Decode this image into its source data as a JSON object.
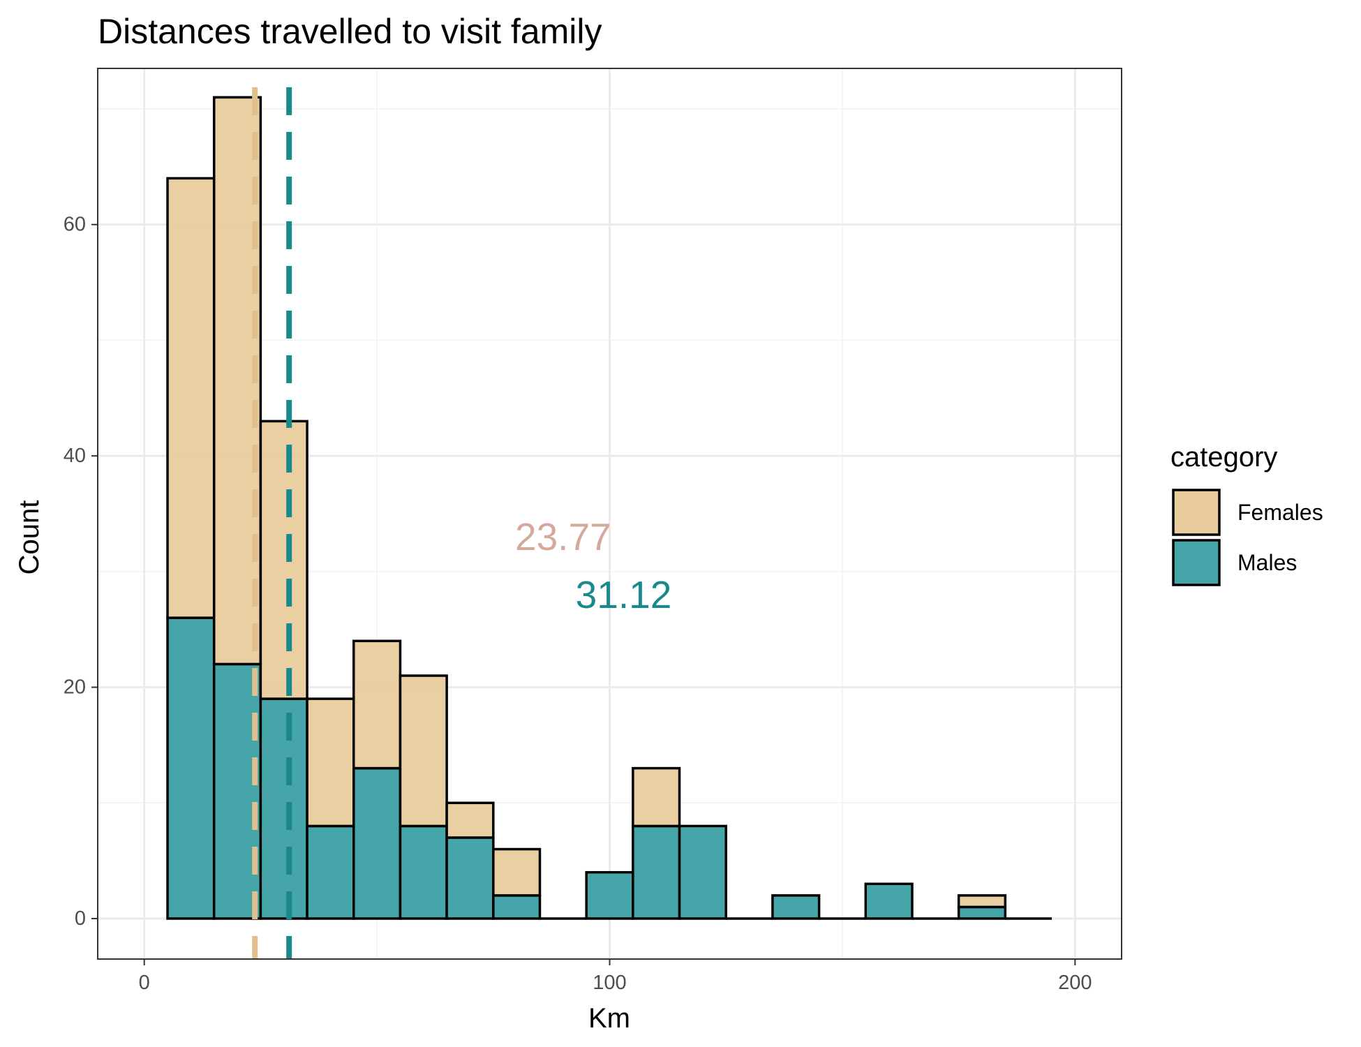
{
  "chart_data": {
    "type": "bar",
    "title": "Distances travelled to visit family",
    "xlabel": "Km",
    "ylabel": "Count",
    "xlim": [
      -10,
      210
    ],
    "ylim": [
      -3.5,
      73.5
    ],
    "x_ticks": [
      0,
      100,
      200
    ],
    "y_ticks": [
      0,
      20,
      40,
      60
    ],
    "grid": true,
    "stacked": true,
    "bin_width": 10,
    "bin_centers": [
      10,
      20,
      30,
      40,
      50,
      60,
      70,
      80,
      90,
      100,
      110,
      120,
      130,
      140,
      150,
      160,
      170,
      180,
      190
    ],
    "series": [
      {
        "name": "Females",
        "color": "#E9CC9E",
        "values": [
          38,
          49,
          24,
          11,
          11,
          13,
          3,
          4,
          0,
          0,
          5,
          0,
          0,
          0,
          0,
          0,
          0,
          1,
          0
        ]
      },
      {
        "name": "Males",
        "color": "#45A5A9",
        "values": [
          26,
          22,
          19,
          8,
          13,
          8,
          7,
          2,
          0,
          4,
          8,
          8,
          0,
          2,
          0,
          3,
          0,
          1,
          0
        ]
      }
    ],
    "mean_lines": [
      {
        "series": "Females",
        "x": 23.77,
        "color": "#E2C08E",
        "label": "23.77",
        "label_color": "#D3A99B"
      },
      {
        "series": "Males",
        "x": 31.12,
        "color": "#19898C",
        "label": "31.12",
        "label_color": "#19898C"
      }
    ],
    "legend": {
      "title": "category",
      "position": "right",
      "entries": [
        "Females",
        "Males"
      ]
    }
  }
}
